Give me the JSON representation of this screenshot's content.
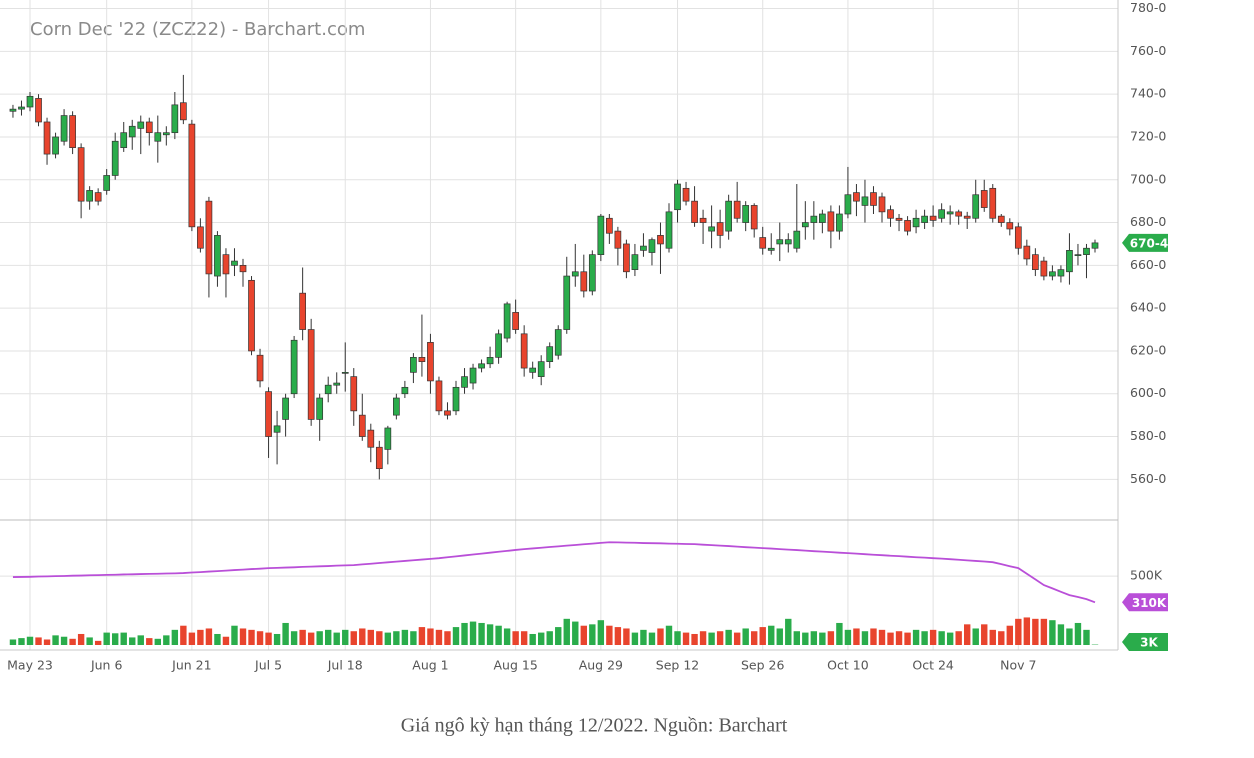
{
  "chart_data": {
    "type": "candlestick",
    "title": "Corn Dec '22 (ZCZ22) - Barchart.com",
    "caption": "Giá ngô kỳ hạn tháng 12/2022. Nguồn: Barchart",
    "categories": [
      null,
      null,
      "May 23",
      null,
      null,
      null,
      null,
      null,
      null,
      null,
      null,
      "Jun 6",
      null,
      null,
      null,
      null,
      null,
      null,
      null,
      null,
      null,
      "Jun 21",
      null,
      null,
      null,
      null,
      null,
      null,
      null,
      null,
      "Jul 5",
      null,
      null,
      null,
      null,
      null,
      null,
      null,
      null,
      "Jul 18",
      null,
      null,
      null,
      null,
      null,
      null,
      null,
      null,
      null,
      "Aug 1",
      null,
      null,
      null,
      null,
      null,
      null,
      null,
      null,
      null,
      "Aug 15",
      null,
      null,
      null,
      null,
      null,
      null,
      null,
      null,
      null,
      "Aug 29",
      null,
      null,
      null,
      null,
      null,
      null,
      null,
      null,
      "Sep 12",
      null,
      null,
      null,
      null,
      null,
      null,
      null,
      null,
      null,
      "Sep 26",
      null,
      null,
      null,
      null,
      null,
      null,
      null,
      null,
      null,
      "Oct 10",
      null,
      null,
      null,
      null,
      null,
      null,
      null,
      null,
      null,
      "Oct 24",
      null,
      null,
      null,
      null,
      null,
      null,
      null,
      null,
      null,
      "Nov 7",
      null,
      null,
      null,
      null,
      null,
      null,
      null,
      null,
      null
    ],
    "open": [
      732,
      733,
      734,
      738,
      727,
      712,
      718,
      730,
      715,
      690,
      694,
      695,
      702,
      715,
      720,
      724,
      727,
      718,
      721,
      722,
      736,
      726,
      678,
      690,
      655,
      665,
      660,
      660,
      653,
      618,
      601,
      582,
      588,
      600,
      647,
      630,
      588,
      600,
      604,
      610,
      608,
      590,
      583,
      575,
      574,
      590,
      600,
      610,
      617,
      624,
      606,
      592,
      592,
      603,
      605,
      612,
      614,
      617,
      626,
      638,
      628,
      610,
      608,
      615,
      618,
      630,
      655,
      657,
      648,
      665,
      682,
      676,
      670,
      658,
      667,
      666,
      674,
      668,
      686,
      696,
      690,
      682,
      676,
      680,
      676,
      690,
      680,
      688,
      673,
      667,
      670,
      670,
      668,
      678,
      680,
      680,
      685,
      676,
      684,
      694,
      688,
      694,
      692,
      686,
      682,
      681,
      678,
      680,
      683,
      682,
      684,
      685,
      683,
      682,
      695,
      696,
      683,
      680,
      678,
      669,
      665,
      662,
      655,
      655,
      657,
      665,
      665,
      668
    ],
    "high": [
      735,
      737,
      741,
      740,
      729,
      722,
      733,
      732,
      717,
      697,
      696,
      705,
      722,
      727,
      728,
      730,
      729,
      730,
      725,
      741,
      749,
      728,
      682,
      692,
      676,
      668,
      668,
      663,
      655,
      621,
      603,
      592,
      600,
      627,
      659,
      635,
      600,
      608,
      610,
      624,
      612,
      600,
      586,
      578,
      585,
      600,
      606,
      619,
      637,
      628,
      608,
      596,
      606,
      612,
      614,
      616,
      622,
      630,
      643,
      644,
      632,
      615,
      618,
      624,
      632,
      664,
      670,
      665,
      667,
      684,
      684,
      678,
      672,
      670,
      675,
      673,
      680,
      689,
      700,
      699,
      697,
      686,
      688,
      686,
      693,
      699,
      690,
      689,
      678,
      675,
      680,
      675,
      698,
      690,
      690,
      686,
      688,
      688,
      706,
      698,
      700,
      697,
      694,
      688,
      684,
      683,
      686,
      686,
      688,
      689,
      688,
      686,
      685,
      700,
      700,
      698,
      684,
      682,
      680,
      672,
      668,
      664,
      660,
      660,
      675,
      670,
      670,
      672
    ],
    "low": [
      729,
      730,
      732,
      725,
      707,
      710,
      716,
      712,
      682,
      686,
      688,
      693,
      700,
      713,
      714,
      712,
      716,
      708,
      716,
      719,
      726,
      676,
      666,
      645,
      650,
      645,
      655,
      650,
      618,
      603,
      570,
      567,
      580,
      598,
      625,
      585,
      578,
      596,
      600,
      601,
      585,
      578,
      568,
      560,
      567,
      588,
      598,
      605,
      608,
      600,
      590,
      588,
      590,
      600,
      602,
      610,
      612,
      614,
      624,
      628,
      608,
      607,
      604,
      612,
      616,
      628,
      650,
      645,
      646,
      662,
      670,
      660,
      654,
      655,
      664,
      660,
      656,
      666,
      680,
      688,
      678,
      670,
      668,
      668,
      672,
      680,
      676,
      673,
      665,
      665,
      662,
      666,
      666,
      672,
      672,
      675,
      668,
      672,
      682,
      683,
      680,
      684,
      680,
      678,
      676,
      674,
      675,
      677,
      678,
      680,
      679,
      679,
      677,
      680,
      685,
      680,
      678,
      674,
      665,
      660,
      655,
      653,
      653,
      652,
      651,
      660,
      654,
      666
    ],
    "close": [
      733,
      734,
      739,
      727,
      712,
      720,
      730,
      715,
      690,
      695,
      690,
      702,
      718,
      722,
      725,
      727,
      722,
      722,
      722,
      735,
      728,
      678,
      668,
      656,
      674,
      656,
      662,
      657,
      620,
      606,
      580,
      585,
      598,
      625,
      630,
      588,
      598,
      604,
      605,
      610,
      592,
      580,
      575,
      565,
      584,
      598,
      603,
      617,
      615,
      606,
      592,
      590,
      603,
      608,
      612,
      614,
      617,
      628,
      642,
      630,
      612,
      612,
      615,
      622,
      630,
      655,
      657,
      648,
      665,
      683,
      675,
      668,
      657,
      665,
      669,
      672,
      670,
      685,
      698,
      690,
      680,
      680,
      678,
      674,
      690,
      682,
      688,
      677,
      668,
      668,
      672,
      672,
      676,
      680,
      683,
      684,
      676,
      684,
      693,
      690,
      692,
      688,
      685,
      682,
      681,
      676,
      682,
      683,
      681,
      686,
      685,
      683,
      682,
      693,
      687,
      682,
      680,
      677,
      668,
      663,
      658,
      655,
      657,
      658,
      667,
      665,
      668,
      670.5
    ],
    "volume": [
      40000,
      50000,
      60000,
      55000,
      40000,
      70000,
      60000,
      45000,
      80000,
      55000,
      30000,
      90000,
      85000,
      90000,
      55000,
      70000,
      50000,
      45000,
      70000,
      110000,
      140000,
      90000,
      110000,
      120000,
      80000,
      60000,
      140000,
      120000,
      110000,
      100000,
      90000,
      80000,
      160000,
      100000,
      110000,
      90000,
      100000,
      110000,
      90000,
      110000,
      100000,
      120000,
      110000,
      100000,
      90000,
      100000,
      110000,
      100000,
      130000,
      120000,
      110000,
      100000,
      130000,
      160000,
      170000,
      160000,
      150000,
      140000,
      120000,
      100000,
      100000,
      80000,
      90000,
      100000,
      130000,
      190000,
      170000,
      140000,
      150000,
      180000,
      140000,
      130000,
      120000,
      90000,
      110000,
      90000,
      120000,
      140000,
      100000,
      90000,
      80000,
      100000,
      90000,
      100000,
      110000,
      90000,
      120000,
      100000,
      130000,
      140000,
      120000,
      190000,
      100000,
      90000,
      100000,
      90000,
      100000,
      160000,
      110000,
      120000,
      100000,
      120000,
      110000,
      90000,
      100000,
      90000,
      110000,
      100000,
      110000,
      100000,
      90000,
      100000,
      150000,
      120000,
      150000,
      110000,
      100000,
      140000,
      190000,
      200000,
      190000,
      190000,
      180000,
      150000,
      120000,
      160000,
      110000,
      3000
    ],
    "open_interest": [
      493000,
      494000,
      495000,
      497000,
      498000,
      500000,
      501000,
      503000,
      504000,
      506000,
      507000,
      509000,
      510000,
      512000,
      513000,
      515000,
      516000,
      517000,
      519000,
      520000,
      522000,
      526000,
      529000,
      533000,
      536000,
      540000,
      544000,
      547000,
      551000,
      554000,
      558000,
      560000,
      562000,
      564000,
      567000,
      569000,
      571000,
      573000,
      576000,
      578000,
      580000,
      585000,
      590000,
      595000,
      600000,
      605000,
      610000,
      615000,
      620000,
      625000,
      630000,
      637000,
      643000,
      650000,
      657000,
      663000,
      670000,
      677000,
      683000,
      690000,
      696000,
      701000,
      706000,
      711000,
      716000,
      721000,
      726000,
      731000,
      736000,
      741000,
      746000,
      745000,
      743000,
      742000,
      740000,
      739000,
      738000,
      736000,
      735000,
      733000,
      732000,
      728000,
      725000,
      721000,
      718000,
      714000,
      710000,
      707000,
      703000,
      700000,
      696000,
      692000,
      689000,
      685000,
      681000,
      678000,
      674000,
      670000,
      667000,
      663000,
      659000,
      655000,
      652000,
      648000,
      645000,
      641000,
      637000,
      634000,
      630000,
      627000,
      623000,
      619000,
      614000,
      610000,
      606000,
      601000,
      587000,
      572000,
      558000,
      517000,
      476000,
      435000,
      411000,
      386000,
      362000,
      348000,
      333000,
      310000
    ],
    "last_price_label": "670-4",
    "last_open_interest_label": "310K",
    "last_volume_label": "3K",
    "up_color": "#2aac4b",
    "down_color": "#e8442d",
    "open_interest_color": "#b94fd8",
    "ylim": [
      541,
      784
    ],
    "yticks": [
      {
        "value": 560,
        "label": "560-0"
      },
      {
        "value": 580,
        "label": "580-0"
      },
      {
        "value": 600,
        "label": "600-0"
      },
      {
        "value": 620,
        "label": "620-0"
      },
      {
        "value": 640,
        "label": "640-0"
      },
      {
        "value": 660,
        "label": "660-0"
      },
      {
        "value": 680,
        "label": "680-0"
      },
      {
        "value": 700,
        "label": "700-0"
      },
      {
        "value": 720,
        "label": "720-0"
      },
      {
        "value": 740,
        "label": "740-0"
      },
      {
        "value": 760,
        "label": "760-0"
      },
      {
        "value": 780,
        "label": "780-0"
      }
    ],
    "volume_ylim": [
      0,
      900000
    ],
    "volume_yticks": [
      {
        "value": 500000,
        "label": "500K"
      }
    ],
    "grid": true
  }
}
